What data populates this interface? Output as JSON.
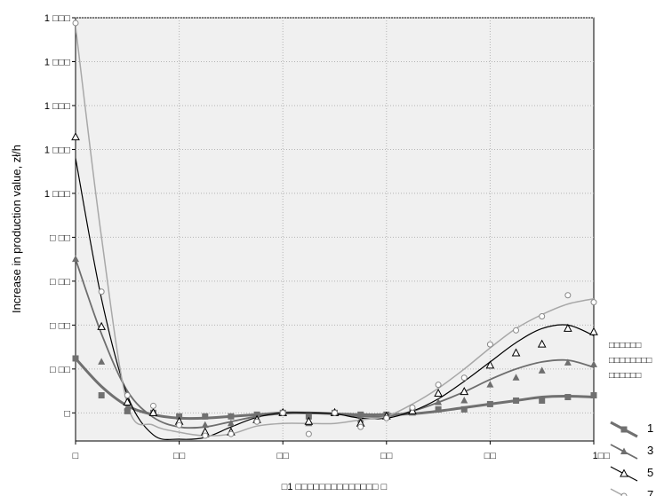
{
  "chart_data": {
    "type": "line",
    "title": "",
    "ylabel": "Increase in production value,  zł/h",
    "xlabel": "□1 □□□□□□□□□□□□□□  □",
    "xlim": [
      0,
      100
    ],
    "ylim": [
      -32,
      450
    ],
    "y_ticks": [
      0,
      50,
      100,
      150,
      200,
      250,
      300,
      350,
      400,
      450
    ],
    "y_tick_labels": [
      "□",
      "□ □□",
      "□ □□",
      "□ □□",
      "□ □□",
      "1 □□□",
      "1 □□□",
      "1 □□□",
      "1 □□□",
      "1 □□□"
    ],
    "x_ticks": [
      0,
      20,
      40,
      60,
      80,
      100
    ],
    "x_tick_labels": [
      "□",
      "□□",
      "□□",
      "□□",
      "□□",
      "1□□"
    ],
    "grid": true,
    "legend": {
      "position": "right",
      "title": [
        "□□□□□□",
        "□□□□□□□□",
        "□□□□□□"
      ],
      "entries": [
        "1",
        "3",
        "5",
        "7"
      ]
    },
    "x": [
      0,
      5,
      10,
      15,
      20,
      25,
      30,
      35,
      40,
      45,
      50,
      55,
      60,
      65,
      70,
      75,
      80,
      85,
      90,
      95,
      100
    ],
    "series": [
      {
        "name": "1",
        "marker": "filled-square",
        "color": "#707070",
        "stroke_width": 3,
        "values": [
          62,
          20,
          2,
          0,
          -4,
          -4,
          -4,
          -2,
          0,
          -4,
          0,
          -2,
          -2,
          2,
          4,
          4,
          10,
          14,
          14,
          18,
          20
        ],
        "fit": [
          62,
          30,
          8,
          -2,
          -6,
          -6,
          -4,
          -2,
          0,
          0,
          -1,
          -2,
          -2,
          -1,
          2,
          6,
          10,
          14,
          18,
          19,
          18
        ]
      },
      {
        "name": "3",
        "marker": "filled-triangle",
        "color": "#6e6e6e",
        "stroke_width": 1.8,
        "values": [
          175,
          58,
          6,
          0,
          -10,
          -14,
          -12,
          -6,
          0,
          -12,
          0,
          -8,
          -4,
          0,
          12,
          14,
          32,
          40,
          48,
          57,
          55
        ],
        "fit": [
          175,
          90,
          25,
          -5,
          -16,
          -16,
          -10,
          -4,
          -1,
          0,
          -1,
          -4,
          -4,
          2,
          12,
          24,
          38,
          50,
          58,
          60,
          52
        ]
      },
      {
        "name": "5",
        "marker": "open-triangle",
        "color": "#000000",
        "stroke_width": 1.2,
        "values": [
          314,
          98,
          12,
          0,
          -10,
          -22,
          -22,
          -8,
          0,
          -10,
          0,
          -12,
          -4,
          2,
          22,
          24,
          54,
          68,
          78,
          96,
          92
        ],
        "fit": [
          290,
          130,
          20,
          -25,
          -30,
          -28,
          -16,
          -5,
          0,
          0,
          -1,
          -6,
          -6,
          2,
          16,
          36,
          58,
          80,
          96,
          100,
          88
        ]
      },
      {
        "name": "7",
        "marker": "open-circle",
        "color": "#a8a8a8",
        "stroke_width": 1.5,
        "values": [
          444,
          138,
          20,
          8,
          -14,
          -26,
          -24,
          -10,
          0,
          -24,
          0,
          -16,
          -6,
          6,
          32,
          40,
          78,
          94,
          110,
          134,
          126
        ],
        "fit": [
          440,
          200,
          10,
          -14,
          -22,
          -26,
          -24,
          -15,
          -12,
          -12,
          -12,
          -8,
          -4,
          10,
          28,
          50,
          74,
          96,
          112,
          124,
          130
        ]
      }
    ]
  }
}
